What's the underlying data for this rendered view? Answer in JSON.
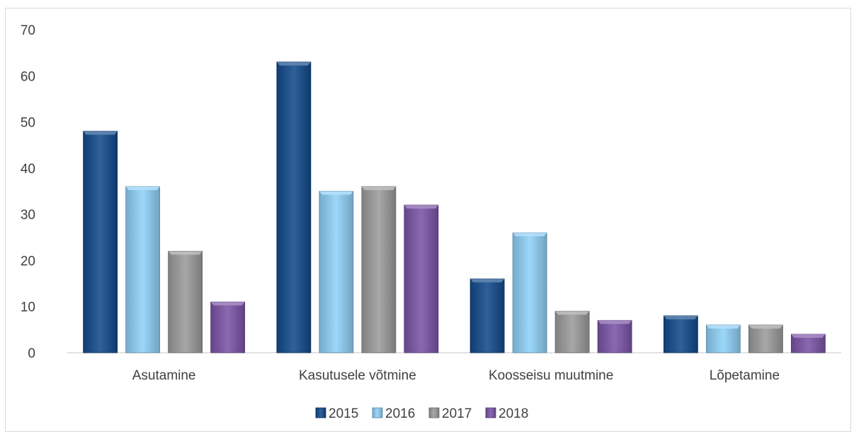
{
  "chart_data": {
    "type": "bar",
    "categories": [
      "Asutamine",
      "Kasutusele võtmine",
      "Koosseisu muutmine",
      "Lõpetamine"
    ],
    "series": [
      {
        "name": "2015",
        "color": "#124a8c",
        "values": [
          48,
          63,
          16,
          8
        ]
      },
      {
        "name": "2016",
        "color": "#8fd1f8",
        "values": [
          36,
          35,
          26,
          6
        ]
      },
      {
        "name": "2017",
        "color": "#9c9c9c",
        "values": [
          22,
          36,
          9,
          6
        ]
      },
      {
        "name": "2018",
        "color": "#7b54a8",
        "values": [
          11,
          32,
          7,
          4
        ]
      }
    ],
    "ylim": [
      0,
      70
    ],
    "yticks": [
      0,
      10,
      20,
      30,
      40,
      50,
      60,
      70
    ],
    "grid": false,
    "legend_position": "bottom",
    "title": "",
    "xlabel": "",
    "ylabel": ""
  }
}
